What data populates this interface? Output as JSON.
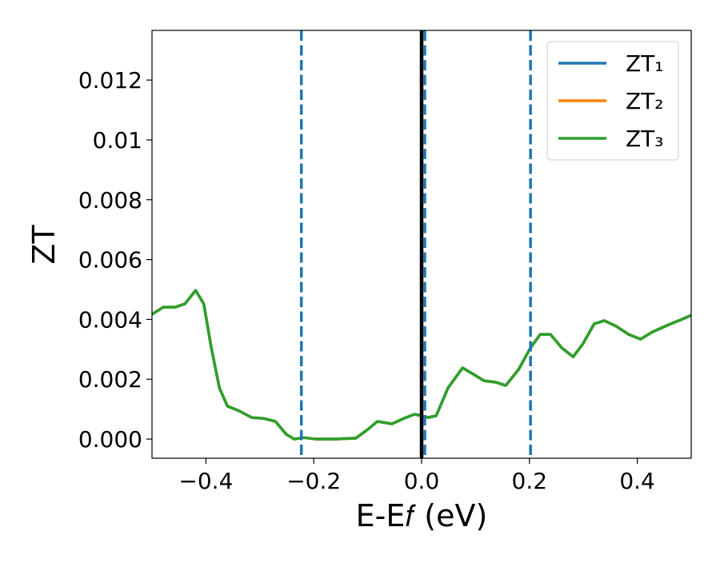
{
  "chart_data": {
    "type": "line",
    "xlabel": "E-E𝑓 (eV)",
    "ylabel": "ZT",
    "x": [
      -0.5,
      -0.479,
      -0.457,
      -0.439,
      -0.419,
      -0.404,
      -0.39,
      -0.375,
      -0.36,
      -0.338,
      -0.315,
      -0.293,
      -0.271,
      -0.251,
      -0.236,
      -0.219,
      -0.196,
      -0.159,
      -0.122,
      -0.1,
      -0.082,
      -0.055,
      -0.033,
      -0.013,
      0.0,
      0.012,
      0.027,
      0.049,
      0.076,
      0.094,
      0.116,
      0.138,
      0.156,
      0.18,
      0.202,
      0.22,
      0.239,
      0.26,
      0.281,
      0.299,
      0.32,
      0.339,
      0.361,
      0.384,
      0.406,
      0.428,
      0.458,
      0.48,
      0.5
    ],
    "series": [
      {
        "name": "ZT₁",
        "color": "#1f77b4",
        "values": [
          0.00417,
          0.00441,
          0.00441,
          0.00452,
          0.00497,
          0.00452,
          0.00305,
          0.00171,
          0.0011,
          0.00094,
          0.00072,
          0.00069,
          0.00059,
          0.00016,
          0.0,
          5e-05,
          0.0,
          0.0,
          3e-05,
          0.00032,
          0.00059,
          0.00051,
          0.00069,
          0.00083,
          0.00078,
          0.00072,
          0.00078,
          0.00171,
          0.00238,
          0.00219,
          0.00195,
          0.0019,
          0.00179,
          0.00233,
          0.00305,
          0.0035,
          0.0035,
          0.00305,
          0.00275,
          0.00318,
          0.00385,
          0.00396,
          0.00377,
          0.0035,
          0.00334,
          0.00358,
          0.00382,
          0.00398,
          0.00414
        ]
      },
      {
        "name": "ZT₂",
        "color": "#ff7f0e",
        "values": [
          0.00417,
          0.00441,
          0.00441,
          0.00452,
          0.00497,
          0.00452,
          0.00305,
          0.00171,
          0.0011,
          0.00094,
          0.00072,
          0.00069,
          0.00059,
          0.00016,
          0.0,
          5e-05,
          0.0,
          0.0,
          3e-05,
          0.00032,
          0.00059,
          0.00051,
          0.00069,
          0.00083,
          0.00078,
          0.00072,
          0.00078,
          0.00171,
          0.00238,
          0.00219,
          0.00195,
          0.0019,
          0.00179,
          0.00233,
          0.00305,
          0.0035,
          0.0035,
          0.00305,
          0.00275,
          0.00318,
          0.00385,
          0.00396,
          0.00377,
          0.0035,
          0.00334,
          0.00358,
          0.00382,
          0.00398,
          0.00414
        ]
      },
      {
        "name": "ZT₃",
        "color": "#2ca02c",
        "values": [
          0.00417,
          0.00441,
          0.00441,
          0.00452,
          0.00497,
          0.00452,
          0.00305,
          0.00171,
          0.0011,
          0.00094,
          0.00072,
          0.00069,
          0.00059,
          0.00016,
          0.0,
          5e-05,
          0.0,
          0.0,
          3e-05,
          0.00032,
          0.00059,
          0.00051,
          0.00069,
          0.00083,
          0.00078,
          0.00072,
          0.00078,
          0.00171,
          0.00238,
          0.00219,
          0.00195,
          0.0019,
          0.00179,
          0.00233,
          0.00305,
          0.0035,
          0.0035,
          0.00305,
          0.00275,
          0.00318,
          0.00385,
          0.00396,
          0.00377,
          0.0035,
          0.00334,
          0.00358,
          0.00382,
          0.00398,
          0.00414
        ]
      }
    ],
    "vlines": [
      {
        "x": 0.0,
        "color": "#000000",
        "dashed": false
      },
      {
        "x": -0.223,
        "color": "#1f77b4",
        "dashed": true
      },
      {
        "x": 0.006,
        "color": "#1f77b4",
        "dashed": true
      },
      {
        "x": 0.202,
        "color": "#1f77b4",
        "dashed": true
      }
    ],
    "xlim": [
      -0.5,
      0.5
    ],
    "ylim": [
      -0.00064,
      0.01366
    ],
    "xticks": [
      {
        "value": -0.4,
        "label": "−0.4"
      },
      {
        "value": -0.2,
        "label": "−0.2"
      },
      {
        "value": 0.0,
        "label": "0.0"
      },
      0.2,
      0.4
    ],
    "yticks": [
      {
        "value": 0.0,
        "label": "0.000"
      },
      0.002,
      0.004,
      0.006,
      0.008,
      0.01,
      0.012
    ],
    "legend": "upper right"
  }
}
